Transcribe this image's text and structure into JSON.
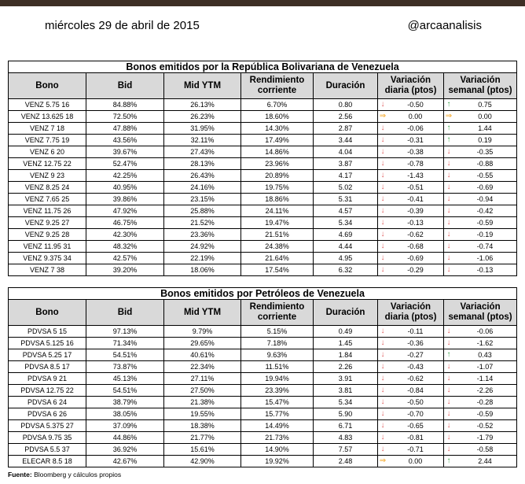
{
  "header": {
    "date": "miércoles 29 de abril de 2015",
    "handle": "@arcaanalisis"
  },
  "columns": [
    "Bono",
    "Bid",
    "Mid YTM",
    "Rendimiento corriente",
    "Duración",
    "Variación diaria (ptos)",
    "Variación semanal (ptos)"
  ],
  "table1": {
    "title": "Bonos emitidos por la República Bolivariana de Venezuela",
    "rows": [
      {
        "bono": "VENZ 5.75 16",
        "bid": "84.88%",
        "ytm": "26.13%",
        "rend": "6.70%",
        "dur": "0.80",
        "dd": "down",
        "diaria": "-0.50",
        "sd": "up",
        "semanal": "0.75"
      },
      {
        "bono": "VENZ 13.625 18",
        "bid": "72.50%",
        "ytm": "26.23%",
        "rend": "18.60%",
        "dur": "2.56",
        "dd": "flat",
        "diaria": "0.00",
        "sd": "flat",
        "semanal": "0.00"
      },
      {
        "bono": "VENZ 7 18",
        "bid": "47.88%",
        "ytm": "31.95%",
        "rend": "14.30%",
        "dur": "2.87",
        "dd": "down",
        "diaria": "-0.06",
        "sd": "up",
        "semanal": "1.44"
      },
      {
        "bono": "VENZ 7.75 19",
        "bid": "43.56%",
        "ytm": "32.11%",
        "rend": "17.49%",
        "dur": "3.44",
        "dd": "down",
        "diaria": "-0.31",
        "sd": "up",
        "semanal": "0.19"
      },
      {
        "bono": "VENZ 6 20",
        "bid": "39.67%",
        "ytm": "27.43%",
        "rend": "14.86%",
        "dur": "4.04",
        "dd": "down",
        "diaria": "-0.38",
        "sd": "down",
        "semanal": "-0.35"
      },
      {
        "bono": "VENZ 12.75 22",
        "bid": "52.47%",
        "ytm": "28.13%",
        "rend": "23.96%",
        "dur": "3.87",
        "dd": "down",
        "diaria": "-0.78",
        "sd": "down",
        "semanal": "-0.88"
      },
      {
        "bono": "VENZ 9 23",
        "bid": "42.25%",
        "ytm": "26.43%",
        "rend": "20.89%",
        "dur": "4.17",
        "dd": "down",
        "diaria": "-1.43",
        "sd": "down",
        "semanal": "-0.55"
      },
      {
        "bono": "VENZ 8.25 24",
        "bid": "40.95%",
        "ytm": "24.16%",
        "rend": "19.75%",
        "dur": "5.02",
        "dd": "down",
        "diaria": "-0.51",
        "sd": "down",
        "semanal": "-0.69"
      },
      {
        "bono": "VENZ 7.65 25",
        "bid": "39.86%",
        "ytm": "23.15%",
        "rend": "18.86%",
        "dur": "5.31",
        "dd": "down",
        "diaria": "-0.41",
        "sd": "down",
        "semanal": "-0.94"
      },
      {
        "bono": "VENZ 11.75 26",
        "bid": "47.92%",
        "ytm": "25.88%",
        "rend": "24.11%",
        "dur": "4.57",
        "dd": "down",
        "diaria": "-0.39",
        "sd": "down",
        "semanal": "-0.42"
      },
      {
        "bono": "VENZ 9.25 27",
        "bid": "46.75%",
        "ytm": "21.52%",
        "rend": "19.47%",
        "dur": "5.34",
        "dd": "down",
        "diaria": "-0.13",
        "sd": "down",
        "semanal": "-0.59"
      },
      {
        "bono": "VENZ 9.25 28",
        "bid": "42.30%",
        "ytm": "23.36%",
        "rend": "21.51%",
        "dur": "4.69",
        "dd": "down",
        "diaria": "-0.62",
        "sd": "down",
        "semanal": "-0.19"
      },
      {
        "bono": "VENZ 11.95 31",
        "bid": "48.32%",
        "ytm": "24.92%",
        "rend": "24.38%",
        "dur": "4.44",
        "dd": "down",
        "diaria": "-0.68",
        "sd": "down",
        "semanal": "-0.74"
      },
      {
        "bono": "VENZ 9.375 34",
        "bid": "42.57%",
        "ytm": "22.19%",
        "rend": "21.64%",
        "dur": "4.95",
        "dd": "down",
        "diaria": "-0.69",
        "sd": "down",
        "semanal": "-1.06"
      },
      {
        "bono": "VENZ 7 38",
        "bid": "39.20%",
        "ytm": "18.06%",
        "rend": "17.54%",
        "dur": "6.32",
        "dd": "down",
        "diaria": "-0.29",
        "sd": "down",
        "semanal": "-0.13"
      }
    ]
  },
  "table2": {
    "title": "Bonos emitidos por Petróleos de Venezuela",
    "rows": [
      {
        "bono": "PDVSA 5 15",
        "bid": "97.13%",
        "ytm": "9.79%",
        "rend": "5.15%",
        "dur": "0.49",
        "dd": "down",
        "diaria": "-0.11",
        "sd": "down",
        "semanal": "-0.06"
      },
      {
        "bono": "PDVSA 5.125 16",
        "bid": "71.34%",
        "ytm": "29.65%",
        "rend": "7.18%",
        "dur": "1.45",
        "dd": "down",
        "diaria": "-0.36",
        "sd": "down",
        "semanal": "-1.62"
      },
      {
        "bono": "PDVSA 5.25 17",
        "bid": "54.51%",
        "ytm": "40.61%",
        "rend": "9.63%",
        "dur": "1.84",
        "dd": "down",
        "diaria": "-0.27",
        "sd": "up",
        "semanal": "0.43"
      },
      {
        "bono": "PDVSA 8.5 17",
        "bid": "73.87%",
        "ytm": "22.34%",
        "rend": "11.51%",
        "dur": "2.26",
        "dd": "down",
        "diaria": "-0.43",
        "sd": "down",
        "semanal": "-1.07"
      },
      {
        "bono": "PDVSA 9 21",
        "bid": "45.13%",
        "ytm": "27.11%",
        "rend": "19.94%",
        "dur": "3.91",
        "dd": "down",
        "diaria": "-0.62",
        "sd": "down",
        "semanal": "-1.14"
      },
      {
        "bono": "PDVSA 12.75 22",
        "bid": "54.51%",
        "ytm": "27.50%",
        "rend": "23.39%",
        "dur": "3.81",
        "dd": "down",
        "diaria": "-0.84",
        "sd": "down",
        "semanal": "-2.26"
      },
      {
        "bono": "PDVSA 6 24",
        "bid": "38.79%",
        "ytm": "21.38%",
        "rend": "15.47%",
        "dur": "5.34",
        "dd": "down",
        "diaria": "-0.50",
        "sd": "down",
        "semanal": "-0.28"
      },
      {
        "bono": "PDVSA 6 26",
        "bid": "38.05%",
        "ytm": "19.55%",
        "rend": "15.77%",
        "dur": "5.90",
        "dd": "down",
        "diaria": "-0.70",
        "sd": "down",
        "semanal": "-0.59"
      },
      {
        "bono": "PDVSA 5.375 27",
        "bid": "37.09%",
        "ytm": "18.38%",
        "rend": "14.49%",
        "dur": "6.71",
        "dd": "down",
        "diaria": "-0.65",
        "sd": "down",
        "semanal": "-0.52"
      },
      {
        "bono": "PDVSA 9.75 35",
        "bid": "44.86%",
        "ytm": "21.77%",
        "rend": "21.73%",
        "dur": "4.83",
        "dd": "down",
        "diaria": "-0.81",
        "sd": "down",
        "semanal": "-1.79"
      },
      {
        "bono": "PDVSA 5.5 37",
        "bid": "36.92%",
        "ytm": "15.61%",
        "rend": "14.90%",
        "dur": "7.57",
        "dd": "down",
        "diaria": "-0.71",
        "sd": "down",
        "semanal": "-0.58"
      },
      {
        "bono": "ELECAR 8.5 18",
        "bid": "42.67%",
        "ytm": "42.90%",
        "rend": "19.92%",
        "dur": "2.48",
        "dd": "flat",
        "diaria": "0.00",
        "sd": "up",
        "semanal": "2.44"
      }
    ]
  },
  "source": {
    "label": "Fuente:",
    "text": "Bloomberg y cálculos propios"
  },
  "colors": {
    "header_bg": "#d9d9d9",
    "down": "#e06060",
    "up": "#3aa04a",
    "flat": "#f5a623",
    "topbar": "#3d2f25"
  }
}
